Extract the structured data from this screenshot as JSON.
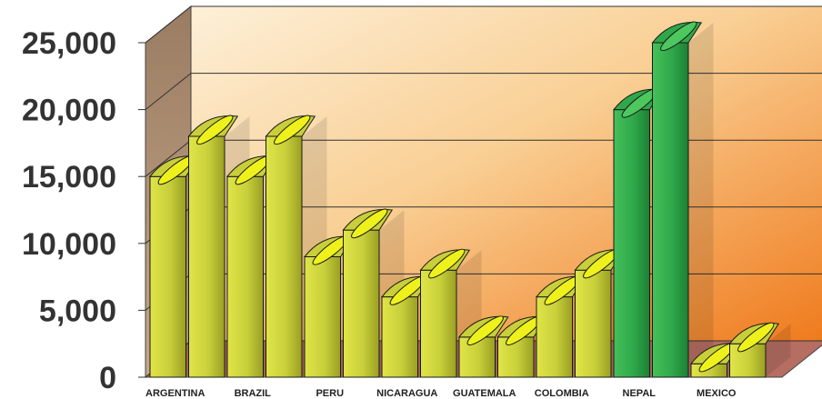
{
  "chart_data": {
    "type": "bar",
    "style": "3d-cylinder",
    "categories": [
      "ARGENTINA",
      "",
      "BRAZIL",
      "",
      "PERU",
      "",
      "NICARAGUA",
      "",
      "GUATEMALA",
      "",
      "COLOMBIA",
      "",
      "NEPAL",
      "",
      "MEXICO",
      ""
    ],
    "values": [
      15000,
      18000,
      15000,
      18000,
      9000,
      11000,
      6000,
      8000,
      3000,
      3000,
      6000,
      8000,
      20000,
      25000,
      1000,
      2500
    ],
    "bar_colors": [
      "#c8cf3a",
      "#c8cf3a",
      "#c8cf3a",
      "#c8cf3a",
      "#c8cf3a",
      "#c8cf3a",
      "#c8cf3a",
      "#c8cf3a",
      "#c8cf3a",
      "#c8cf3a",
      "#c8cf3a",
      "#c8cf3a",
      "#2fa84a",
      "#2fa84a",
      "#c8cf3a",
      "#c8cf3a"
    ],
    "y_ticks": [
      "0",
      "5,000",
      "10,000",
      "15,000",
      "20,000",
      "25,000"
    ],
    "ylim": [
      0,
      25000
    ],
    "grid": true,
    "colors": {
      "bar_yellow": "#c8cf3a",
      "bar_green": "#2fa84a",
      "top_yellow": "#eef21a",
      "top_green": "#4cc85e",
      "wall_light": "#fbe2b8",
      "wall_dark": "#f0801f",
      "side_wall": "#a8876b",
      "floor": "#b56e61"
    }
  }
}
